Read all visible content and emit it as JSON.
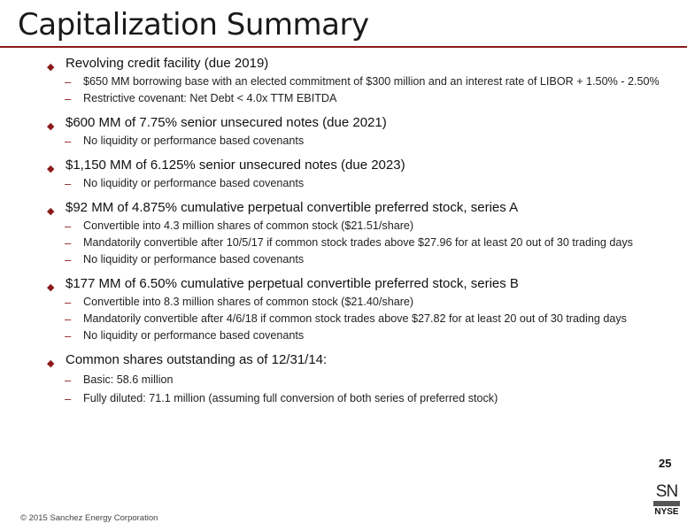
{
  "title": "Capitalization Summary",
  "sections": [
    {
      "heading": "Revolving credit facility (due 2019)",
      "items": [
        "$650 MM borrowing base with an elected commitment of $300 million and an interest rate of LIBOR + 1.50% - 2.50%",
        "Restrictive covenant: Net Debt < 4.0x TTM EBITDA"
      ]
    },
    {
      "heading": "$600 MM of 7.75% senior unsecured notes (due 2021)",
      "items": [
        "No liquidity or performance based covenants"
      ]
    },
    {
      "heading": "$1,150 MM of 6.125% senior unsecured notes (due 2023)",
      "items": [
        "No liquidity or performance based covenants"
      ]
    },
    {
      "heading": "$92 MM of 4.875% cumulative perpetual convertible preferred stock, series A",
      "items": [
        "Convertible into 4.3 million shares of common stock ($21.51/share)",
        "Mandatorily convertible after 10/5/17 if common stock trades above $27.96 for at least 20 out of 30 trading days",
        "No liquidity or performance based covenants"
      ]
    },
    {
      "heading": "$177 MM of 6.50% cumulative perpetual convertible preferred stock, series B",
      "items": [
        "Convertible into 8.3 million shares of common stock ($21.40/share)",
        "Mandatorily convertible after 4/6/18 if common stock trades above $27.82 for at least 20 out of 30 trading days",
        "No liquidity or performance based covenants"
      ]
    },
    {
      "heading": "Common shares outstanding as of 12/31/14:",
      "items": [
        "Basic: 58.6 million",
        "Fully diluted: 71.1 million (assuming full conversion of both series of preferred stock)"
      ]
    }
  ],
  "page_number": "25",
  "copyright": "© 2015 Sanchez Energy Corporation",
  "logo": {
    "top": "SN",
    "bottom": "NYSE"
  },
  "colors": {
    "accent": "#8b1a1a"
  }
}
